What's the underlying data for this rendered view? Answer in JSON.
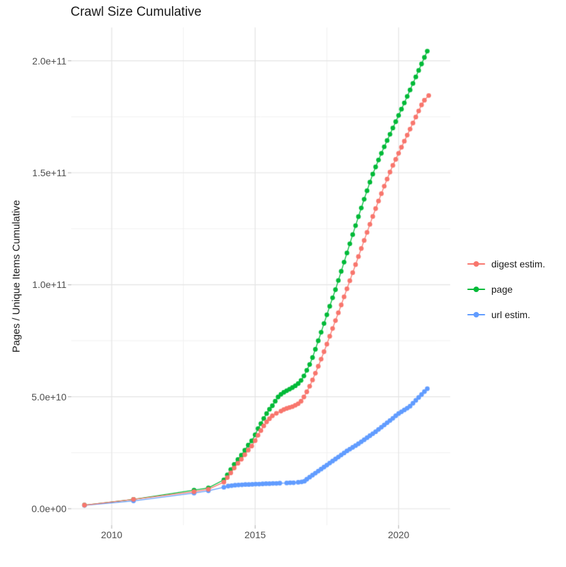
{
  "title": "Crawl Size Cumulative",
  "axes": {
    "y_label": "Pages / Unique Items Cumulative",
    "x_label": "",
    "y_ticks": [
      {
        "label": "0.0e+00",
        "value_e9": 0
      },
      {
        "label": "5.0e+10",
        "value_e9": 50
      },
      {
        "label": "1.0e+11",
        "value_e9": 100
      },
      {
        "label": "1.5e+11",
        "value_e9": 150
      },
      {
        "label": "2.0e+11",
        "value_e9": 200
      }
    ],
    "x_ticks": [
      {
        "label": "2010",
        "value": 2010
      },
      {
        "label": "2015",
        "value": 2015
      },
      {
        "label": "2020",
        "value": 2020
      }
    ]
  },
  "legend": {
    "items": [
      {
        "label": "digest estim.",
        "color": "#F8766D"
      },
      {
        "label": "page",
        "color": "#00BA38"
      },
      {
        "label": "url estim.",
        "color": "#619CFF"
      }
    ]
  },
  "chart_data": {
    "type": "scatter",
    "title": "Crawl Size Cumulative",
    "xlabel": "",
    "ylabel": "Pages / Unique Items Cumulative",
    "x_unit": "year",
    "y_unit": "items cumulative, in billions (1e9)",
    "xlim": [
      2008.6,
      2021.8
    ],
    "ylim_e9": [
      0,
      215
    ],
    "grid": "major and minor, light gray on white",
    "legend_position": "right",
    "x_major_breaks": [
      2010,
      2015,
      2020
    ],
    "x_minor_breaks": [
      2012.5,
      2017.5
    ],
    "y_major_breaks_e9": [
      0,
      50,
      100,
      150,
      200
    ],
    "y_minor_breaks_e9": [
      25,
      75,
      125,
      175
    ],
    "series": [
      {
        "name": "page",
        "color": "#00BA38",
        "points": [
          [
            2009.05,
            1.6
          ],
          [
            2010.76,
            4.2
          ],
          [
            2012.87,
            8.3
          ],
          [
            2013.37,
            9.3
          ],
          [
            2013.91,
            12.9
          ],
          [
            2014.03,
            15.1
          ],
          [
            2014.15,
            17.5
          ],
          [
            2014.27,
            19.8
          ],
          [
            2014.4,
            22.0
          ],
          [
            2014.52,
            23.9
          ],
          [
            2014.64,
            26.1
          ],
          [
            2014.76,
            28.4
          ],
          [
            2014.88,
            30.3
          ],
          [
            2015.0,
            33.0
          ],
          [
            2015.1,
            35.8
          ],
          [
            2015.2,
            38.0
          ],
          [
            2015.3,
            40.3
          ],
          [
            2015.4,
            42.5
          ],
          [
            2015.5,
            44.4
          ],
          [
            2015.6,
            46.0
          ],
          [
            2015.7,
            48.0
          ],
          [
            2015.8,
            49.9
          ],
          [
            2015.9,
            51.1
          ],
          [
            2016.0,
            52.0
          ],
          [
            2016.1,
            52.7
          ],
          [
            2016.2,
            53.4
          ],
          [
            2016.3,
            54.1
          ],
          [
            2016.4,
            54.9
          ],
          [
            2016.5,
            55.9
          ],
          [
            2016.6,
            57.3
          ],
          [
            2016.7,
            59.3
          ],
          [
            2016.8,
            61.8
          ],
          [
            2016.9,
            64.4
          ],
          [
            2017.0,
            67.5
          ],
          [
            2017.1,
            71.2
          ],
          [
            2017.2,
            75.0
          ],
          [
            2017.3,
            78.8
          ],
          [
            2017.4,
            82.7
          ],
          [
            2017.5,
            86.6
          ],
          [
            2017.6,
            90.4
          ],
          [
            2017.7,
            94.2
          ],
          [
            2017.8,
            97.8
          ],
          [
            2017.9,
            101.9
          ],
          [
            2018.0,
            106.0
          ],
          [
            2018.1,
            110.1
          ],
          [
            2018.2,
            114.2
          ],
          [
            2018.3,
            118.3
          ],
          [
            2018.4,
            122.4
          ],
          [
            2018.5,
            126.4
          ],
          [
            2018.6,
            130.4
          ],
          [
            2018.7,
            134.3
          ],
          [
            2018.8,
            138.2
          ],
          [
            2018.9,
            142.0
          ],
          [
            2019.0,
            145.8
          ],
          [
            2019.1,
            149.4
          ],
          [
            2019.2,
            152.6
          ],
          [
            2019.3,
            155.7
          ],
          [
            2019.4,
            158.7
          ],
          [
            2019.5,
            161.6
          ],
          [
            2019.6,
            164.4
          ],
          [
            2019.7,
            167.2
          ],
          [
            2019.8,
            170.0
          ],
          [
            2019.9,
            172.8
          ],
          [
            2020.0,
            175.6
          ],
          [
            2020.1,
            178.4
          ],
          [
            2020.2,
            181.2
          ],
          [
            2020.3,
            184.1
          ],
          [
            2020.4,
            187.0
          ],
          [
            2020.5,
            189.9
          ],
          [
            2020.6,
            192.8
          ],
          [
            2020.7,
            195.7
          ],
          [
            2020.8,
            198.6
          ],
          [
            2020.9,
            201.5
          ],
          [
            2021.0,
            204.3
          ]
        ]
      },
      {
        "name": "url estim.",
        "color": "#619CFF",
        "points": [
          [
            2009.05,
            1.5
          ],
          [
            2010.76,
            3.5
          ],
          [
            2012.87,
            7.0
          ],
          [
            2013.37,
            8.0
          ],
          [
            2013.91,
            9.6
          ],
          [
            2014.06,
            10.1
          ],
          [
            2014.18,
            10.3
          ],
          [
            2014.3,
            10.5
          ],
          [
            2014.42,
            10.6
          ],
          [
            2014.54,
            10.7
          ],
          [
            2014.66,
            10.8
          ],
          [
            2014.78,
            10.8
          ],
          [
            2014.9,
            10.9
          ],
          [
            2015.02,
            11.0
          ],
          [
            2015.14,
            11.0
          ],
          [
            2015.26,
            11.1
          ],
          [
            2015.38,
            11.2
          ],
          [
            2015.5,
            11.2
          ],
          [
            2015.62,
            11.3
          ],
          [
            2015.74,
            11.3
          ],
          [
            2015.86,
            11.4
          ],
          [
            2016.1,
            11.5
          ],
          [
            2016.22,
            11.6
          ],
          [
            2016.34,
            11.6
          ],
          [
            2016.5,
            11.8
          ],
          [
            2016.62,
            12.0
          ],
          [
            2016.72,
            12.3
          ],
          [
            2016.8,
            13.2
          ],
          [
            2016.9,
            14.1
          ],
          [
            2017.0,
            15.0
          ],
          [
            2017.1,
            15.9
          ],
          [
            2017.2,
            16.8
          ],
          [
            2017.3,
            17.7
          ],
          [
            2017.4,
            18.6
          ],
          [
            2017.5,
            19.5
          ],
          [
            2017.6,
            20.4
          ],
          [
            2017.7,
            21.3
          ],
          [
            2017.8,
            22.2
          ],
          [
            2017.9,
            23.1
          ],
          [
            2018.0,
            24.0
          ],
          [
            2018.1,
            24.9
          ],
          [
            2018.2,
            25.8
          ],
          [
            2018.3,
            26.6
          ],
          [
            2018.4,
            27.4
          ],
          [
            2018.5,
            28.2
          ],
          [
            2018.6,
            29.0
          ],
          [
            2018.7,
            29.9
          ],
          [
            2018.8,
            30.8
          ],
          [
            2018.9,
            31.7
          ],
          [
            2019.0,
            32.6
          ],
          [
            2019.1,
            33.5
          ],
          [
            2019.2,
            34.4
          ],
          [
            2019.3,
            35.4
          ],
          [
            2019.4,
            36.4
          ],
          [
            2019.5,
            37.4
          ],
          [
            2019.6,
            38.4
          ],
          [
            2019.7,
            39.4
          ],
          [
            2019.8,
            40.4
          ],
          [
            2019.9,
            41.5
          ],
          [
            2020.0,
            42.5
          ],
          [
            2020.1,
            43.3
          ],
          [
            2020.2,
            44.1
          ],
          [
            2020.3,
            44.9
          ],
          [
            2020.4,
            45.8
          ],
          [
            2020.5,
            47.1
          ],
          [
            2020.6,
            48.4
          ],
          [
            2020.7,
            49.7
          ],
          [
            2020.8,
            51.0
          ],
          [
            2020.9,
            52.3
          ],
          [
            2021.0,
            53.6
          ]
        ]
      },
      {
        "name": "digest estim.",
        "color": "#F8766D",
        "points": [
          [
            2009.05,
            1.6
          ],
          [
            2010.76,
            4.2
          ],
          [
            2012.87,
            7.6
          ],
          [
            2013.37,
            8.7
          ],
          [
            2013.91,
            11.9
          ],
          [
            2014.03,
            13.9
          ],
          [
            2014.15,
            16.0
          ],
          [
            2014.27,
            18.2
          ],
          [
            2014.4,
            20.3
          ],
          [
            2014.52,
            22.1
          ],
          [
            2014.64,
            24.1
          ],
          [
            2014.76,
            26.2
          ],
          [
            2014.88,
            28.0
          ],
          [
            2015.0,
            30.4
          ],
          [
            2015.1,
            32.8
          ],
          [
            2015.2,
            34.9
          ],
          [
            2015.3,
            37.0
          ],
          [
            2015.4,
            38.8
          ],
          [
            2015.5,
            40.2
          ],
          [
            2015.6,
            41.5
          ],
          [
            2015.74,
            42.6
          ],
          [
            2015.9,
            43.6
          ],
          [
            2016.0,
            44.3
          ],
          [
            2016.1,
            44.8
          ],
          [
            2016.2,
            45.2
          ],
          [
            2016.3,
            45.6
          ],
          [
            2016.4,
            46.2
          ],
          [
            2016.5,
            46.9
          ],
          [
            2016.6,
            48.0
          ],
          [
            2016.7,
            49.9
          ],
          [
            2016.8,
            52.2
          ],
          [
            2016.9,
            54.7
          ],
          [
            2017.0,
            57.5
          ],
          [
            2017.1,
            60.5
          ],
          [
            2017.2,
            63.6
          ],
          [
            2017.3,
            66.8
          ],
          [
            2017.4,
            70.1
          ],
          [
            2017.5,
            73.5
          ],
          [
            2017.6,
            77.0
          ],
          [
            2017.7,
            80.5
          ],
          [
            2017.8,
            84.0
          ],
          [
            2017.9,
            87.5
          ],
          [
            2018.0,
            91.0
          ],
          [
            2018.1,
            94.6
          ],
          [
            2018.2,
            98.2
          ],
          [
            2018.3,
            101.8
          ],
          [
            2018.4,
            105.4
          ],
          [
            2018.5,
            109.0
          ],
          [
            2018.6,
            112.6
          ],
          [
            2018.7,
            116.2
          ],
          [
            2018.8,
            119.8
          ],
          [
            2018.9,
            123.4
          ],
          [
            2019.0,
            127.0
          ],
          [
            2019.1,
            130.5
          ],
          [
            2019.2,
            134.0
          ],
          [
            2019.3,
            137.4
          ],
          [
            2019.4,
            140.7
          ],
          [
            2019.5,
            144.0
          ],
          [
            2019.6,
            147.2
          ],
          [
            2019.7,
            150.3
          ],
          [
            2019.8,
            153.3
          ],
          [
            2019.9,
            156.0
          ],
          [
            2020.0,
            158.7
          ],
          [
            2020.1,
            161.4
          ],
          [
            2020.2,
            164.1
          ],
          [
            2020.3,
            166.8
          ],
          [
            2020.4,
            169.5
          ],
          [
            2020.5,
            172.2
          ],
          [
            2020.6,
            174.9
          ],
          [
            2020.7,
            177.6
          ],
          [
            2020.8,
            180.3
          ],
          [
            2020.9,
            182.4
          ],
          [
            2021.05,
            184.5
          ]
        ]
      }
    ]
  }
}
